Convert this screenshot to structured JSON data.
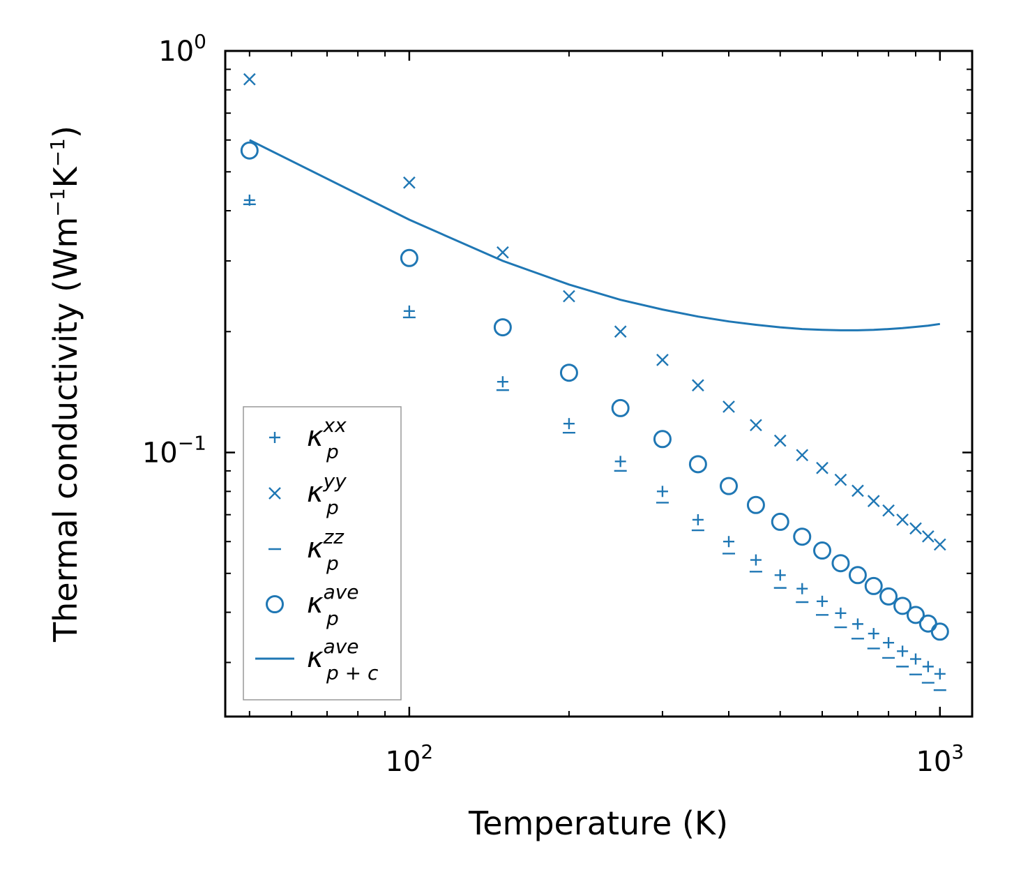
{
  "chart_data": {
    "type": "scatter",
    "xscale": "log",
    "yscale": "log",
    "xlim": [
      45,
      1150
    ],
    "ylim": [
      0.022,
      1.0
    ],
    "xlabel": "Temperature (K)",
    "ylabel": {
      "main": "Thermal conductivity (Wm",
      "sup1": "−1",
      "mid": "K",
      "sup2": "−1",
      "end": ")"
    },
    "x_ticks": [
      {
        "value": 100,
        "base": "10",
        "exp": "2"
      },
      {
        "value": 1000,
        "base": "10",
        "exp": "3"
      }
    ],
    "y_ticks": [
      {
        "value": 1.0,
        "base": "10",
        "exp": "0"
      },
      {
        "value": 0.1,
        "base": "10",
        "exp": "−1"
      }
    ],
    "color": "#1f77b4",
    "x": [
      50,
      100,
      150,
      200,
      250,
      300,
      350,
      400,
      450,
      500,
      550,
      600,
      650,
      700,
      750,
      800,
      850,
      900,
      950,
      1000
    ],
    "series": [
      {
        "name": "kappa_p_xx",
        "marker": "plus",
        "legend_base": "κ",
        "legend_sub": "p",
        "legend_sup": "xx",
        "values": [
          0.425,
          0.225,
          0.15,
          0.118,
          0.095,
          0.08,
          0.068,
          0.06,
          0.054,
          0.0495,
          0.0458,
          0.0426,
          0.0398,
          0.0374,
          0.0354,
          0.0336,
          0.032,
          0.0306,
          0.0293,
          0.0281
        ]
      },
      {
        "name": "kappa_p_yy",
        "marker": "x",
        "legend_base": "κ",
        "legend_sub": "p",
        "legend_sup": "yy",
        "values": [
          0.85,
          0.47,
          0.315,
          0.245,
          0.2,
          0.17,
          0.147,
          0.13,
          0.117,
          0.107,
          0.0985,
          0.0915,
          0.0855,
          0.0803,
          0.0757,
          0.0717,
          0.068,
          0.0647,
          0.0618,
          0.059
        ]
      },
      {
        "name": "kappa_p_zz",
        "marker": "minus",
        "legend_base": "κ",
        "legend_sub": "p",
        "legend_sup": "zz",
        "values": [
          0.415,
          0.217,
          0.143,
          0.112,
          0.09,
          0.075,
          0.064,
          0.056,
          0.0505,
          0.046,
          0.0424,
          0.0394,
          0.0367,
          0.0344,
          0.0325,
          0.0308,
          0.0293,
          0.028,
          0.0267,
          0.0256
        ]
      },
      {
        "name": "kappa_p_ave",
        "marker": "circle",
        "legend_base": "κ",
        "legend_sub": "p",
        "legend_sup": "ave",
        "values": [
          0.565,
          0.305,
          0.205,
          0.158,
          0.129,
          0.108,
          0.0935,
          0.0825,
          0.074,
          0.0672,
          0.0617,
          0.057,
          0.053,
          0.0495,
          0.0465,
          0.0438,
          0.0415,
          0.0394,
          0.0375,
          0.0358
        ]
      },
      {
        "name": "kappa_pc_ave",
        "marker": "line",
        "legend_base": "κ",
        "legend_sub": "p + c",
        "legend_sup": "ave",
        "values": [
          0.6,
          0.38,
          0.3,
          0.262,
          0.24,
          0.227,
          0.218,
          0.212,
          0.208,
          0.205,
          0.203,
          0.202,
          0.2015,
          0.2015,
          0.202,
          0.203,
          0.204,
          0.2055,
          0.207,
          0.209
        ]
      }
    ],
    "legend_position": "lower-left"
  }
}
